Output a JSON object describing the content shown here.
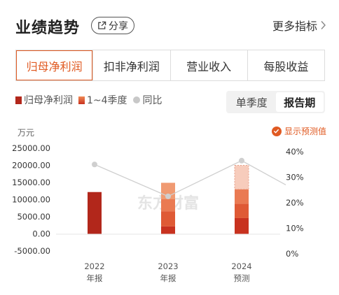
{
  "header": {
    "title": "业绩趋势",
    "share_label": "分享",
    "more_label": "更多指标"
  },
  "tabs": [
    {
      "label": "归母净利润",
      "active": true
    },
    {
      "label": "扣非净利润",
      "active": false
    },
    {
      "label": "营业收入",
      "active": false
    },
    {
      "label": "每股收益",
      "active": false
    }
  ],
  "legend": {
    "net_profit": "归母净利润",
    "quarters": "1~4季度",
    "yoy": "同比"
  },
  "period_toggle": {
    "options": [
      "单季度",
      "报告期"
    ],
    "selected": "报告期"
  },
  "chart_header": {
    "unit": "万元",
    "forecast_label": "显示预测值",
    "forecast_checked": true
  },
  "watermark": "东方财富",
  "colors": {
    "accent": "#e05a22",
    "bar_annual": "#b2271b",
    "q1": "#c8321f",
    "q2": "#df5a35",
    "q3": "#ea7a52",
    "q4_forecast": "#f3b6a0",
    "yoy_line": "#cfcfcf"
  },
  "chart_data": {
    "type": "bar",
    "title": "",
    "ylabel": "万元",
    "categories": [
      "2022",
      "2023",
      "2024"
    ],
    "category_sublabels": [
      "年报",
      "年报",
      "预测"
    ],
    "ylim": [
      -5000,
      25000
    ],
    "y_ticks": [
      "25000.00",
      "20000.00",
      "15000.00",
      "10000.00",
      "5000.00",
      "0.00",
      "-5000.00"
    ],
    "y_tick_values": [
      25000,
      20000,
      15000,
      10000,
      5000,
      0,
      -5000
    ],
    "y2lim": [
      0,
      40
    ],
    "y2_ticks": [
      "40%",
      "30%",
      "20%",
      "10%",
      "0%"
    ],
    "y2_tick_values": [
      40,
      30,
      20,
      10,
      0
    ],
    "annual": [
      12200,
      null,
      null
    ],
    "stacked": [
      null,
      [
        2200,
        4400,
        3500,
        4800
      ],
      [
        4600,
        4200,
        4200,
        7000
      ]
    ],
    "forecast_segment": [
      false,
      false,
      true
    ],
    "yoy": [
      35,
      22.5,
      36.5,
      27
    ],
    "yoy_x": [
      0,
      1,
      2,
      2.6
    ],
    "grid": false,
    "legend_position": "top-left"
  }
}
